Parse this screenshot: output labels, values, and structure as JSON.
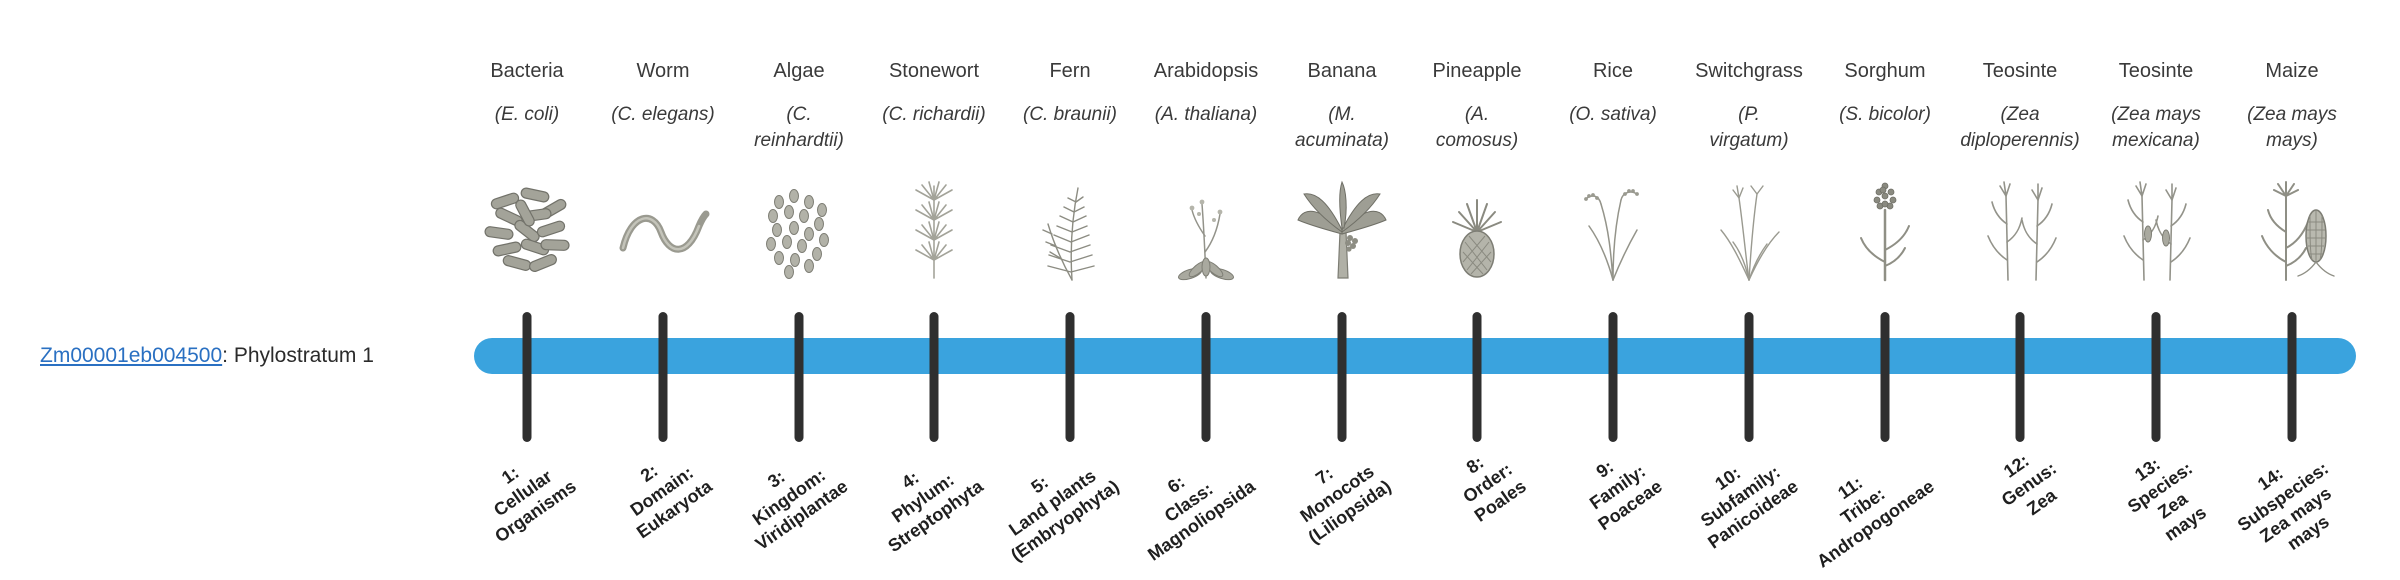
{
  "gene_label": {
    "id": "Zm00001eb004500",
    "suffix": ": Phylostratum 1"
  },
  "colors": {
    "bar": "#3aa3de",
    "tick": "#2f2f2f",
    "link": "#2a70c2"
  },
  "organisms": [
    {
      "name": "Bacteria",
      "sci_lines": [
        "(E. coli)"
      ],
      "icon": "bacteria-icon"
    },
    {
      "name": "Worm",
      "sci_lines": [
        "(C. elegans)"
      ],
      "icon": "worm-icon"
    },
    {
      "name": "Algae",
      "sci_lines": [
        "(C.",
        "reinhardtii)"
      ],
      "icon": "algae-icon"
    },
    {
      "name": "Stonewort",
      "sci_lines": [
        "(C. richardii)"
      ],
      "icon": "stonewort-icon"
    },
    {
      "name": "Fern",
      "sci_lines": [
        "(C. braunii)"
      ],
      "icon": "fern-icon"
    },
    {
      "name": "Arabidopsis",
      "sci_lines": [
        "(A. thaliana)"
      ],
      "icon": "arabidopsis-icon"
    },
    {
      "name": "Banana",
      "sci_lines": [
        "(M.",
        "acuminata)"
      ],
      "icon": "banana-icon"
    },
    {
      "name": "Pineapple",
      "sci_lines": [
        "(A.",
        "comosus)"
      ],
      "icon": "pineapple-icon"
    },
    {
      "name": "Rice",
      "sci_lines": [
        "(O. sativa)"
      ],
      "icon": "rice-icon"
    },
    {
      "name": "Switchgrass",
      "sci_lines": [
        "(P.",
        "virgatum)"
      ],
      "icon": "switchgrass-icon"
    },
    {
      "name": "Sorghum",
      "sci_lines": [
        "(S. bicolor)"
      ],
      "icon": "sorghum-icon"
    },
    {
      "name": "Teosinte",
      "sci_lines": [
        "(Zea",
        "diploperennis)"
      ],
      "icon": "teosinte-diploperennis-icon"
    },
    {
      "name": "Teosinte",
      "sci_lines": [
        "(Zea mays",
        "mexicana)"
      ],
      "icon": "teosinte-mexicana-icon"
    },
    {
      "name": "Maize",
      "sci_lines": [
        "(Zea mays",
        "mays)"
      ],
      "icon": "maize-icon"
    }
  ],
  "phylostrata": [
    {
      "lines": [
        "1:",
        "Cellular",
        "Organisms"
      ]
    },
    {
      "lines": [
        "2:",
        "Domain:",
        "Eukaryota"
      ]
    },
    {
      "lines": [
        "3:",
        "Kingdom:",
        "Viridiplantae"
      ]
    },
    {
      "lines": [
        "4:",
        "Phylum:",
        "Streptophyta"
      ]
    },
    {
      "lines": [
        "5:",
        "Land plants",
        "(Embryophyta)"
      ]
    },
    {
      "lines": [
        "6:",
        "Class:",
        "Magnoliopsida"
      ]
    },
    {
      "lines": [
        "7:",
        "Monocots",
        "(Liliopsida)"
      ]
    },
    {
      "lines": [
        "8:",
        "Order:",
        "Poales"
      ]
    },
    {
      "lines": [
        "9:",
        "Family:",
        "Poaceae"
      ]
    },
    {
      "lines": [
        "10:",
        "Subfamily:",
        "Panicoideae"
      ]
    },
    {
      "lines": [
        "11:",
        "Tribe:",
        "Andropogoneae"
      ]
    },
    {
      "lines": [
        "12:",
        "Genus:",
        "Zea"
      ]
    },
    {
      "lines": [
        "13:",
        "Species:",
        "Zea",
        "mays"
      ]
    },
    {
      "lines": [
        "14:",
        "Subspecies:",
        "Zea mays",
        "mays"
      ]
    }
  ]
}
